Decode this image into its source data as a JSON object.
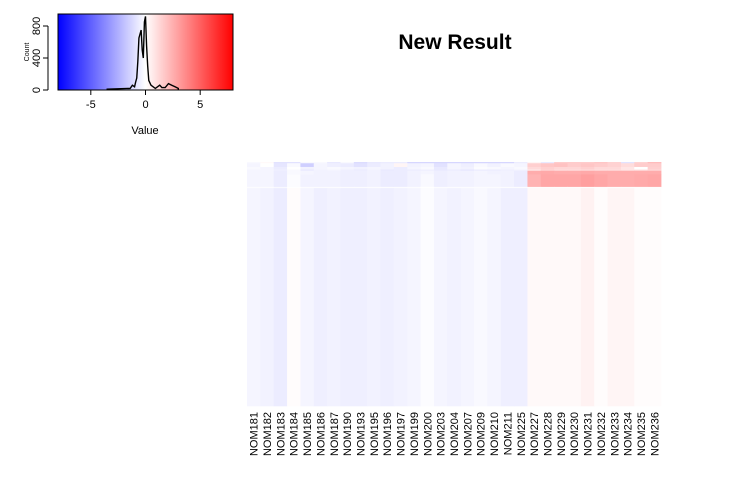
{
  "chart_data": [
    {
      "type": "heatmap",
      "title": "New Result",
      "columns": [
        "NOM181",
        "NOM182",
        "NOM183",
        "NOM184",
        "NOM185",
        "NOM186",
        "NOM187",
        "NOM190",
        "NOM193",
        "NOM195",
        "NOM196",
        "NOM197",
        "NOM199",
        "NOM200",
        "NOM203",
        "NOM204",
        "NOM207",
        "NOM209",
        "NOM210",
        "NOM211",
        "NOM225",
        "NOM227",
        "NOM228",
        "NOM229",
        "NOM230",
        "NOM231",
        "NOM232",
        "NOM233",
        "NOM234",
        "NOM235",
        "NOM236"
      ],
      "row_groups": [
        {
          "rows": 1,
          "values": [
            -0.2,
            0.2,
            -0.9,
            -0.9,
            -0.2,
            -0.2,
            -0.7,
            -0.2,
            -1.1,
            -0.7,
            -0.6,
            -0.6,
            -1.3,
            -1.3,
            -1.3,
            -1.3,
            -1.3,
            -1.3,
            -1.3,
            -1.3,
            -0.6,
            0.3,
            -0.7,
            1.6,
            1.6,
            1.6,
            1.8,
            1.4,
            -0.9,
            1.4,
            2.1
          ]
        },
        {
          "rows": 3,
          "values": [
            -0.3,
            0.0,
            -0.8,
            -0.2,
            -1.5,
            -0.3,
            -0.5,
            -0.6,
            -0.9,
            -0.6,
            -0.4,
            0.3,
            -0.4,
            -0.3,
            -0.9,
            -0.3,
            -0.5,
            -0.2,
            -0.4,
            -0.2,
            -0.3,
            1.5,
            1.8,
            1.9,
            1.6,
            1.8,
            1.6,
            1.4,
            1.1,
            1.6,
            1.6
          ]
        },
        {
          "rows": 2,
          "values": [
            -0.2,
            -0.3,
            -0.6,
            0.0,
            -0.4,
            -0.3,
            -0.2,
            -0.3,
            -0.4,
            -0.3,
            -0.4,
            -0.6,
            -0.3,
            -0.2,
            -0.7,
            -0.3,
            -0.4,
            -0.1,
            -0.2,
            -0.3,
            -0.2,
            1.2,
            1.5,
            1.3,
            1.3,
            1.5,
            1.2,
            1.2,
            0.8,
            0.0,
            1.5
          ]
        },
        {
          "rows": 1,
          "values": [
            -0.3,
            -0.3,
            -0.5,
            -0.2,
            -0.7,
            -0.4,
            -0.3,
            -0.5,
            -0.6,
            -0.4,
            -0.7,
            -0.6,
            -0.6,
            -0.5,
            -0.7,
            -0.6,
            -0.8,
            -0.6,
            -0.6,
            -0.5,
            -0.4,
            0.7,
            1.3,
            1.0,
            1.0,
            1.1,
            1.0,
            1.0,
            0.8,
            0.9,
            1.2
          ]
        },
        {
          "rows": 3,
          "values": [
            -0.3,
            -0.3,
            -0.6,
            -0.2,
            -0.3,
            -0.4,
            -0.4,
            -0.5,
            -0.5,
            -0.4,
            -0.6,
            -0.6,
            -0.4,
            -0.3,
            -0.5,
            -0.4,
            -0.4,
            -0.3,
            -0.4,
            -0.4,
            -0.6,
            2.6,
            2.7,
            2.6,
            2.6,
            2.7,
            2.6,
            2.6,
            2.6,
            2.6,
            2.6
          ]
        },
        {
          "rows": 10,
          "values": [
            -0.3,
            -0.3,
            -0.6,
            -0.1,
            -0.4,
            -0.4,
            -0.4,
            -0.5,
            -0.5,
            -0.4,
            -0.6,
            -0.6,
            -0.4,
            -0.2,
            -0.5,
            -0.4,
            -0.4,
            -0.3,
            -0.3,
            -0.4,
            -0.6,
            2.4,
            2.8,
            2.8,
            2.8,
            3.0,
            2.8,
            2.6,
            2.6,
            2.7,
            2.8
          ]
        },
        {
          "rows": 1,
          "values": [
            -0.1,
            -0.1,
            -0.2,
            0.0,
            -0.1,
            -0.1,
            -0.1,
            -0.1,
            -0.1,
            -0.1,
            -0.1,
            -0.1,
            -0.1,
            0.0,
            -0.1,
            -0.1,
            -0.1,
            -0.1,
            -0.1,
            -0.1,
            -0.1,
            0.1,
            0.1,
            0.1,
            0.1,
            0.1,
            0.1,
            0.1,
            0.1,
            0.1,
            0.1
          ]
        },
        {
          "rows": 175,
          "values": [
            -0.3,
            -0.4,
            -0.6,
            0.1,
            -0.3,
            -0.5,
            -0.4,
            -0.5,
            -0.5,
            -0.4,
            -0.5,
            -0.4,
            -0.3,
            -0.1,
            -0.3,
            -0.4,
            -0.3,
            -0.2,
            -0.3,
            -0.5,
            -0.5,
            0.2,
            0.2,
            0.2,
            0.2,
            0.4,
            0.1,
            0.3,
            0.3,
            0.1,
            0.1
          ]
        }
      ],
      "color_scale": {
        "low": "#0000ff",
        "mid": "#ffffff",
        "high": "#ff0000",
        "min": -8,
        "max": 8
      }
    },
    {
      "type": "histogram",
      "xlabel": "Value",
      "ylabel": "Count",
      "xlim": [
        -8,
        8
      ],
      "ylim": [
        0,
        950
      ],
      "x_ticks": [
        "-5",
        "0",
        "5"
      ],
      "y_ticks": [
        "0",
        "400",
        "800"
      ],
      "x": [
        -3.5,
        -1.4,
        -1.2,
        -1.0,
        -0.9,
        -0.8,
        -0.7,
        -0.6,
        -0.5,
        -0.4,
        -0.3,
        -0.2,
        -0.1,
        0.0,
        0.1,
        0.2,
        0.3,
        0.5,
        0.7,
        0.9,
        1.3,
        1.5,
        1.8,
        2.1,
        2.4,
        2.7,
        3.0
      ],
      "values": [
        10,
        20,
        60,
        40,
        100,
        150,
        360,
        650,
        700,
        750,
        500,
        400,
        850,
        920,
        550,
        300,
        120,
        60,
        40,
        20,
        60,
        30,
        30,
        80,
        60,
        40,
        20
      ]
    }
  ]
}
